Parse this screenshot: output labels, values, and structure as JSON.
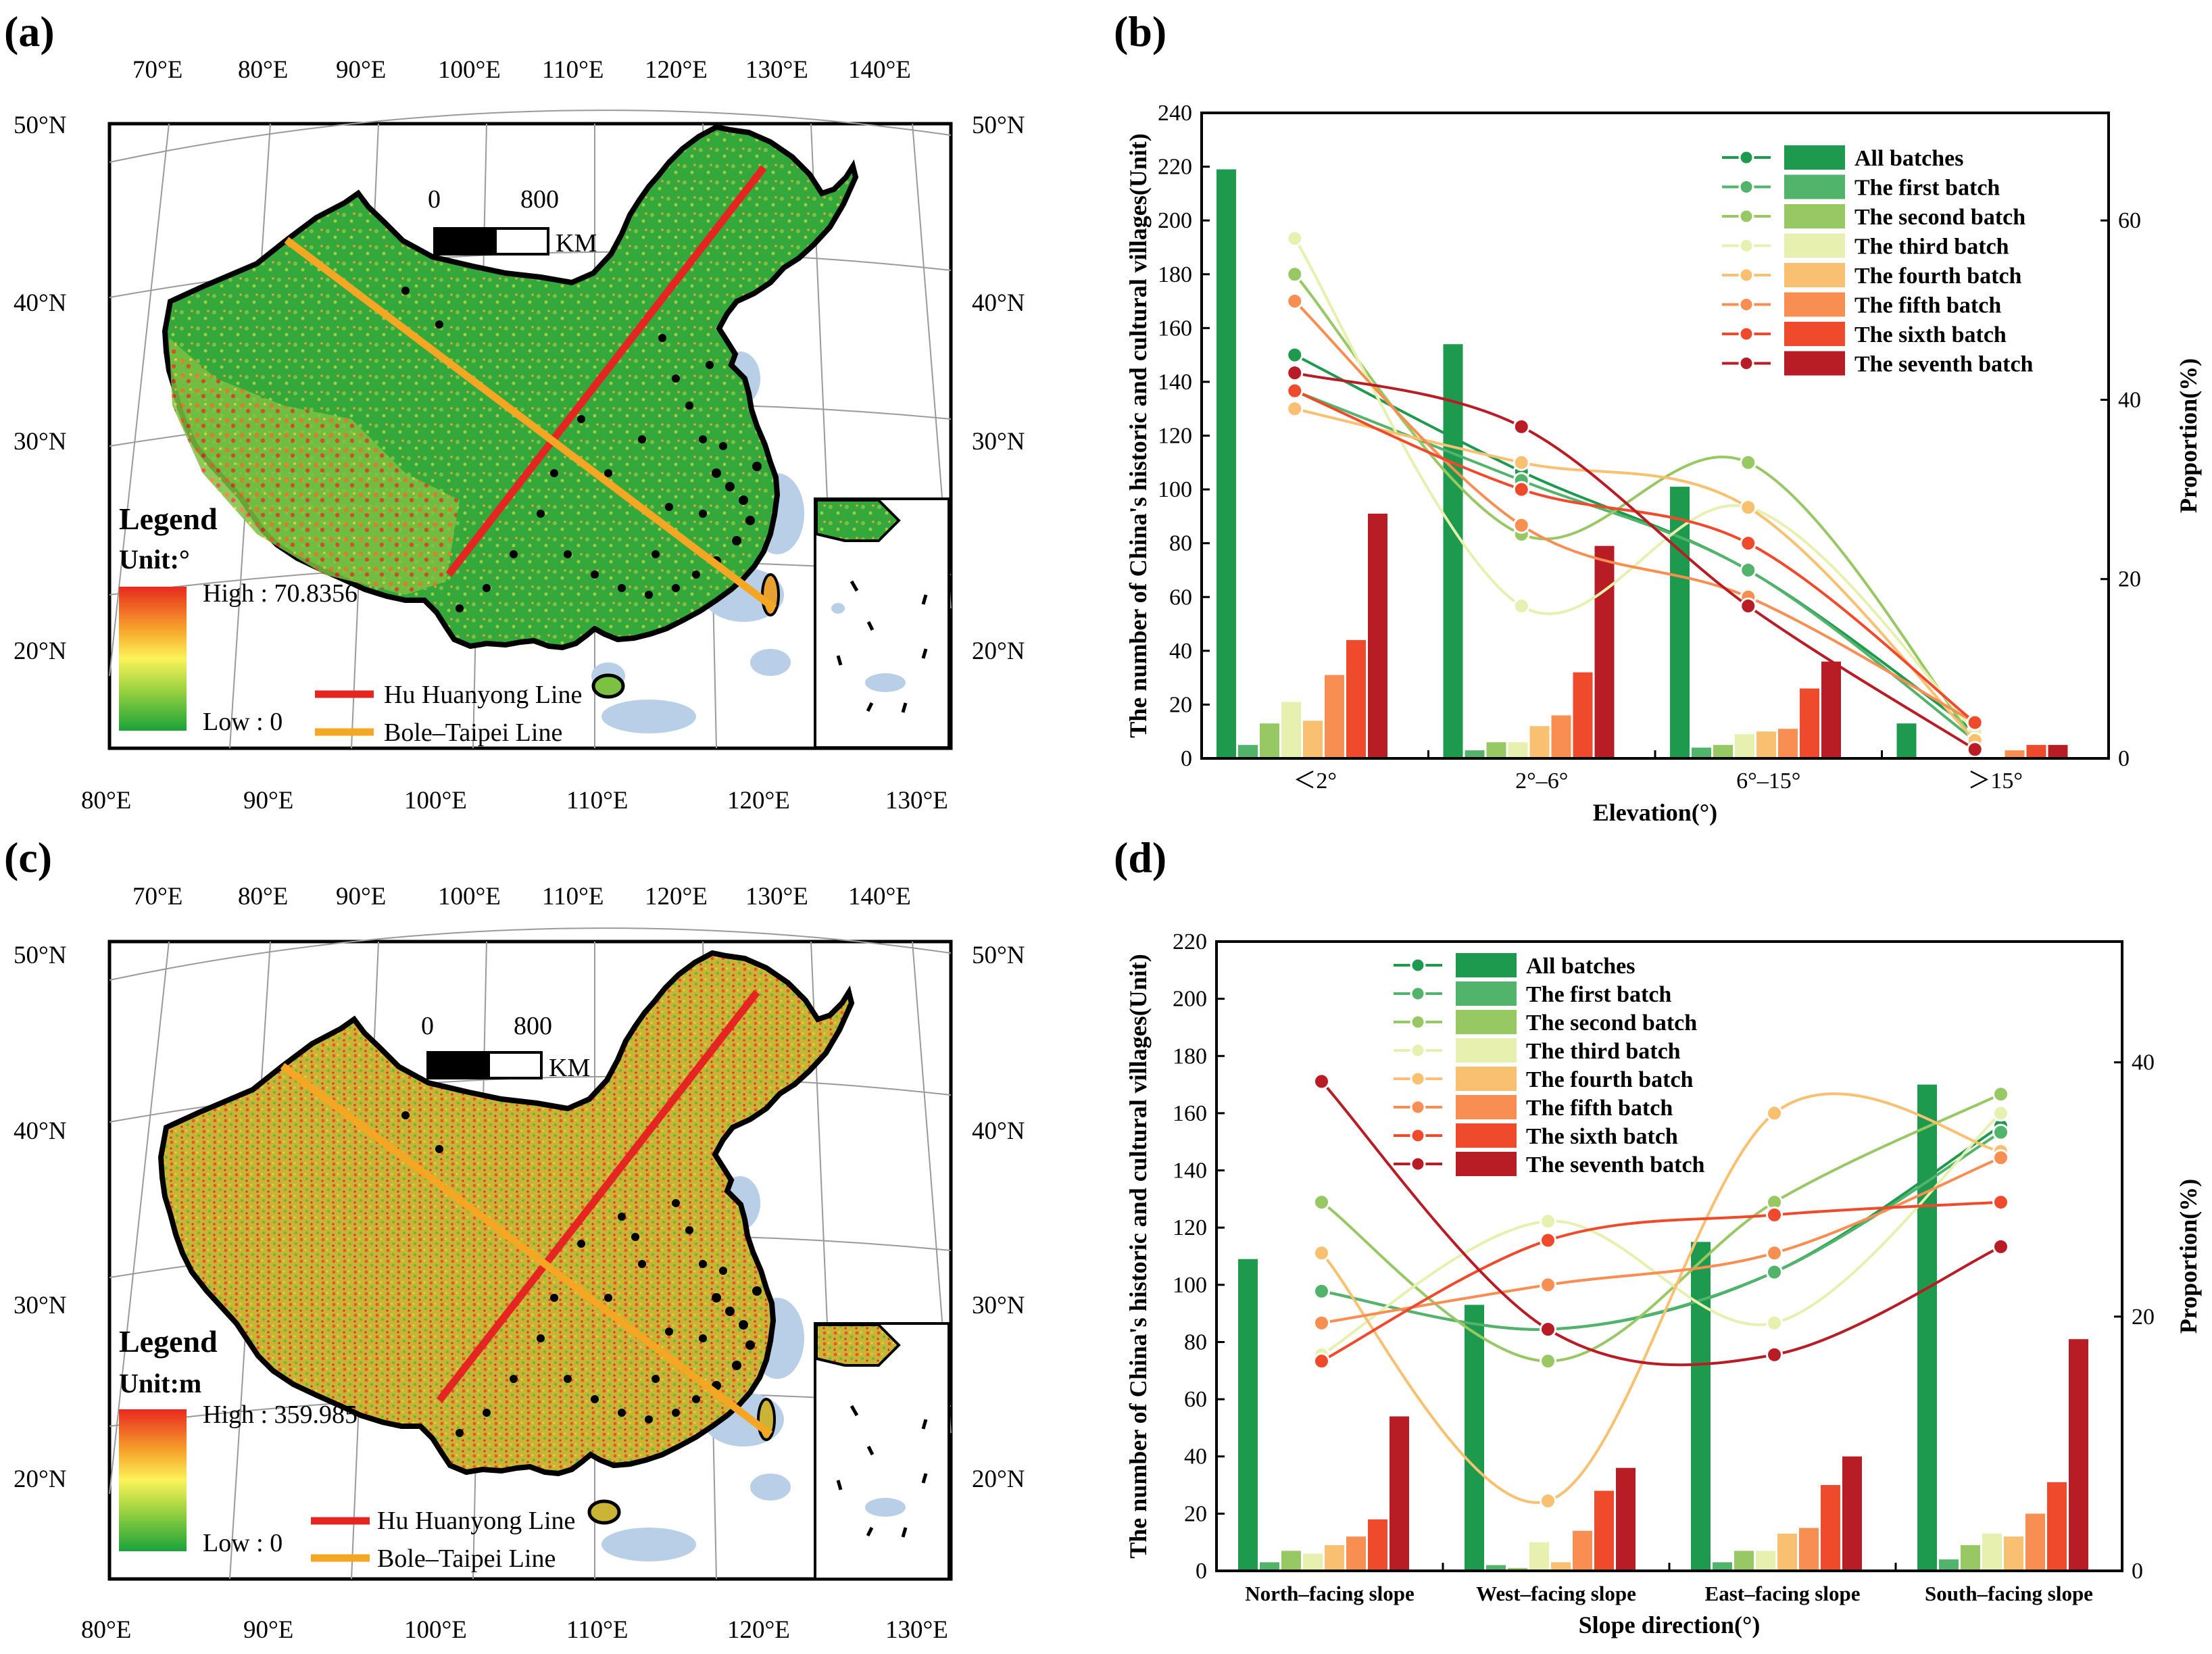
{
  "panels": {
    "a": "(a)",
    "b": "(b)",
    "c": "(c)",
    "d": "(d)"
  },
  "map_common": {
    "lon_top": [
      "70°E",
      "80°E",
      "90°E",
      "100°E",
      "110°E",
      "120°E",
      "130°E",
      "140°E"
    ],
    "lon_bottom": [
      "80°E",
      "90°E",
      "100°E",
      "110°E",
      "120°E",
      "130°E"
    ],
    "lat": [
      "50°N",
      "40°N",
      "30°N",
      "20°N"
    ],
    "scale_zero": "0",
    "scale_value": "800",
    "scale_unit": "KM",
    "legend_title": "Legend",
    "line1": "Hu Huanyong Line",
    "line2": "Bole–Taipei Line",
    "colors": {
      "hu_line": "#e52521",
      "bole_line": "#f5a623",
      "land": "#4fb83a",
      "sea": "#b9cfe8"
    }
  },
  "map_a": {
    "unit": "Unit:°",
    "high": "High : 70.8356",
    "low": "Low : 0"
  },
  "map_c": {
    "unit": "Unit:m",
    "high": "High : 359.985",
    "low": "Low : 0"
  },
  "series_names": [
    "All batches",
    "The first batch",
    "The second batch",
    "The third batch",
    "The fourth batch",
    "The fifth batch",
    "The sixth batch",
    "The seventh batch"
  ],
  "series_colors": [
    "#1e9a4f",
    "#52b46a",
    "#98c864",
    "#e8f0b0",
    "#f8c070",
    "#f88e52",
    "#ef4a2c",
    "#b81c25"
  ],
  "chart_data": [
    {
      "id": "b",
      "type": "bar",
      "categories": [
        "＜2°",
        "2°–6°",
        "6°–15°",
        "＞15°"
      ],
      "xlabel": "Elevation(°)",
      "ylabel": "The number of China's historic and cultural villages(Unit)",
      "y2label": "Proportion(%)",
      "ylim": [
        0,
        240
      ],
      "yticks": [
        "0",
        "20",
        "40",
        "60",
        "80",
        "100",
        "120",
        "140",
        "160",
        "180",
        "200",
        "220",
        "240"
      ],
      "y2lim": [
        0,
        72
      ],
      "y2ticks": [
        "0",
        "20",
        "40",
        "60"
      ],
      "bar_series": [
        {
          "name": "All batches",
          "values": [
            219,
            154,
            101,
            13
          ]
        },
        {
          "name": "The first batch",
          "values": [
            5,
            3,
            4,
            0
          ]
        },
        {
          "name": "The second batch",
          "values": [
            13,
            6,
            5,
            0
          ]
        },
        {
          "name": "The third batch",
          "values": [
            21,
            6,
            9,
            0
          ]
        },
        {
          "name": "The fourth batch",
          "values": [
            14,
            12,
            10,
            0
          ]
        },
        {
          "name": "The fifth batch",
          "values": [
            31,
            16,
            11,
            3
          ]
        },
        {
          "name": "The sixth batch",
          "values": [
            44,
            32,
            26,
            5
          ]
        },
        {
          "name": "The seventh batch",
          "values": [
            91,
            79,
            36,
            5
          ]
        }
      ],
      "line_series": [
        {
          "name": "All batches",
          "values": [
            45,
            32,
            21,
            3
          ]
        },
        {
          "name": "The first batch",
          "values": [
            41,
            31,
            21,
            2
          ]
        },
        {
          "name": "The second batch",
          "values": [
            54,
            25,
            33,
            2
          ]
        },
        {
          "name": "The third batch",
          "values": [
            58,
            17,
            28,
            3
          ]
        },
        {
          "name": "The fourth batch",
          "values": [
            39,
            33,
            28,
            2
          ]
        },
        {
          "name": "The fifth batch",
          "values": [
            51,
            26,
            18,
            4
          ]
        },
        {
          "name": "The sixth batch",
          "values": [
            41,
            30,
            24,
            4
          ]
        },
        {
          "name": "The seventh batch",
          "values": [
            43,
            37,
            17,
            1
          ]
        }
      ]
    },
    {
      "id": "d",
      "type": "bar",
      "categories": [
        "North–facing slope",
        "West–facing slope",
        "East–facing slope",
        "South–facing slope"
      ],
      "xlabel": "Slope direction(°)",
      "ylabel": "The number of China's historic and cultural villages(Unit)",
      "y2label": "Proportion(%)",
      "ylim": [
        0,
        220
      ],
      "yticks": [
        "0",
        "20",
        "40",
        "60",
        "80",
        "100",
        "120",
        "140",
        "160",
        "180",
        "200",
        "220"
      ],
      "y2lim": [
        0,
        49.5
      ],
      "y2ticks": [
        "0",
        "20",
        "40"
      ],
      "bar_series": [
        {
          "name": "All batches",
          "values": [
            109,
            93,
            115,
            170
          ]
        },
        {
          "name": "The first batch",
          "values": [
            3,
            2,
            3,
            4
          ]
        },
        {
          "name": "The second batch",
          "values": [
            7,
            1,
            7,
            9
          ]
        },
        {
          "name": "The third batch",
          "values": [
            6,
            10,
            7,
            13
          ]
        },
        {
          "name": "The fourth batch",
          "values": [
            9,
            3,
            13,
            12
          ]
        },
        {
          "name": "The fifth batch",
          "values": [
            12,
            14,
            15,
            20
          ]
        },
        {
          "name": "The sixth batch",
          "values": [
            18,
            28,
            30,
            31
          ]
        },
        {
          "name": "The seventh batch",
          "values": [
            54,
            36,
            40,
            81
          ]
        }
      ],
      "line_series": [
        {
          "name": "All batches",
          "values": [
            22,
            19,
            23.5,
            35
          ]
        },
        {
          "name": "The first batch",
          "values": [
            22,
            19,
            23.5,
            34.5
          ]
        },
        {
          "name": "The second batch",
          "values": [
            29,
            16.5,
            29,
            37.5
          ]
        },
        {
          "name": "The third batch",
          "values": [
            17,
            27.5,
            19.5,
            36
          ]
        },
        {
          "name": "The fourth batch",
          "values": [
            25,
            5.5,
            36,
            33
          ]
        },
        {
          "name": "The fifth batch",
          "values": [
            19.5,
            22.5,
            25,
            32.5
          ]
        },
        {
          "name": "The sixth batch",
          "values": [
            16.5,
            26,
            28,
            29
          ]
        },
        {
          "name": "The seventh batch",
          "values": [
            38.5,
            19,
            17,
            25.5
          ]
        }
      ]
    }
  ]
}
